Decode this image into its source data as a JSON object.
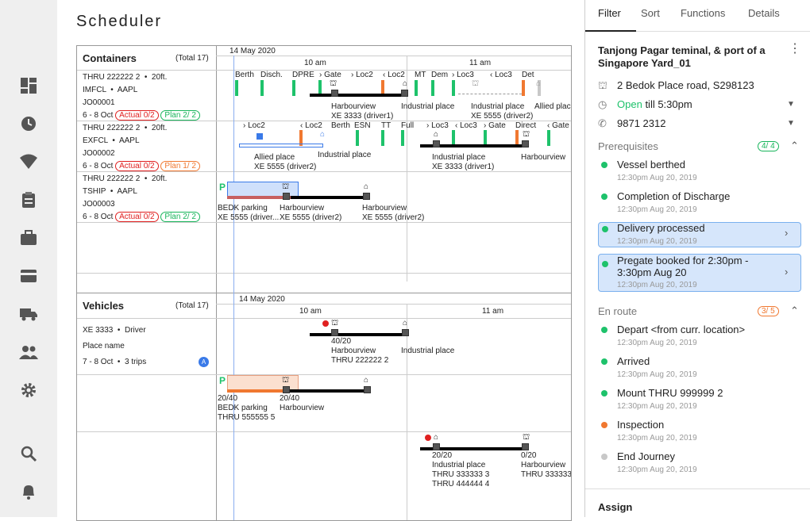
{
  "page": {
    "title": "Scheduler"
  },
  "nav": [
    "dashboard-icon",
    "history-icon",
    "wifi-icon",
    "clipboard-icon",
    "briefcase-icon",
    "card-icon",
    "truck-icon",
    "people-icon",
    "settings-icon",
    "search-icon",
    "bell-icon"
  ],
  "containers": {
    "title": "Containers",
    "total": "(Total 17)",
    "date": "14 May 2020",
    "time1": "10 am",
    "time2": "11 am",
    "rows": [
      {
        "l1": "THRU 222222 2",
        "l1b": "20ft.",
        "l2": "IMFCL",
        "l2b": "AAPL",
        "l3": "JO00001",
        "l4": "6 - 8 Oct",
        "actual": "Actual 0/2",
        "plan": "Plan 2/ 2"
      },
      {
        "l1": "THRU 222222 2",
        "l1b": "20ft.",
        "l2": "EXFCL",
        "l2b": "AAPL",
        "l3": "JO00002",
        "l4": "6 - 8 Oct",
        "actual": "Actual 0/2",
        "plan": "Plan 1/ 2"
      },
      {
        "l1": "THRU 222222 2",
        "l1b": "20ft.",
        "l2": "TSHIP",
        "l2b": "AAPL",
        "l3": "JO00003",
        "l4": "6 - 8 Oct",
        "actual": "Actual 0/2",
        "plan": "Plan 2/ 2"
      }
    ],
    "r1": {
      "m1": "Berth",
      "m2": "Disch.",
      "m3": "DPRE",
      "m4": "Gate",
      "m5": "Loc2",
      "m6": "Loc2",
      "m7": "MT",
      "m8": "Dem",
      "m9": "Loc3",
      "m10": "Loc3",
      "m11": "Det",
      "a1": "Harbourview",
      "a2": "XE 3333 (driver1)",
      "a3": "Industrial place",
      "a4": "Industrial place",
      "a5": "XE 5555 (driver2)",
      "a6": "Allied plac",
      "n": "8"
    },
    "r2": {
      "m1": "Loc2",
      "m2": "Loc2",
      "m3": "Berth",
      "m4": "ESN",
      "m5": "TT",
      "m6": "Full",
      "m7": "Loc3",
      "m8": "Loc3",
      "m9": "Gate",
      "m10": "Direct",
      "m11": "Gate",
      "a1": "Allied place",
      "a2": "XE 5555 (driver2)",
      "a3": "Industrial place",
      "a4": "Industrial place",
      "a5": "XE 3333 (driver1)",
      "a6": "Harbourview",
      "n": "8"
    },
    "r3": {
      "p": "P",
      "a1": "BEDK parking",
      "a2": "XE 5555 (driver...",
      "a3": "Harbourview",
      "a4": "XE 5555 (driver2)",
      "a5": "Harbourview",
      "a6": "XE 5555 (driver2)",
      "n": "8"
    }
  },
  "vehicles": {
    "title": "Vehicles",
    "total": "(Total 17)",
    "date": "14 May 2020",
    "time1": "10 am",
    "time2": "11 am",
    "v1": {
      "l1": "XE 3333",
      "l1b": "Driver",
      "l2": "Place name",
      "l3": "7 - 8 Oct",
      "l3b": "3 trips",
      "badge": "A",
      "a1": "40/20",
      "a2": "Harbourview",
      "a3": "THRU 222222 2",
      "a4": "Industrial place"
    },
    "v2": {
      "p": "P",
      "a1": "20/40",
      "a2": "BEDK parking",
      "a3": "THRU 555555 5",
      "a4": "20/40",
      "a5": "Harbourview"
    },
    "v3": {
      "a1": "20/20",
      "a2": "Industrial place",
      "a3": "THRU 333333 3",
      "a4": "THRU 444444 4",
      "a5": "0/20",
      "a6": "Harbourview",
      "a7": "THRU 333333"
    }
  },
  "right": {
    "tabs": [
      "Filter",
      "Sort",
      "Functions",
      "Details"
    ],
    "location": "Tanjong Pagar teminal, & port of a Singapore Yard_01",
    "address": "2 Bedok Place road, S298123",
    "open": "Open",
    "till": "till 5:30pm",
    "phone": "9871 2312",
    "prereq": "Prerequisites",
    "prereq_count": "4/ 4",
    "items1": [
      {
        "t": "Vessel berthed",
        "s": "12:30pm Aug 20, 2019"
      },
      {
        "t": "Completion of Discharge",
        "s": "12:30pm Aug 20, 2019"
      },
      {
        "t": "Delivery processed",
        "s": "12:30pm Aug 20, 2019"
      },
      {
        "t": "Pregate booked for 2:30pm - 3:30pm Aug 20",
        "s": "12:30pm Aug 20, 2019"
      }
    ],
    "enroute": "En route",
    "enroute_count": "3/ 5",
    "items2": [
      {
        "t": "Depart <from curr. location>",
        "s": "12:30pm Aug 20, 2019"
      },
      {
        "t": "Arrived",
        "s": "12:30pm Aug 20, 2019"
      },
      {
        "t": "Mount THRU 999999 2",
        "s": "12:30pm Aug 20, 2019"
      },
      {
        "t": "Inspection",
        "s": "12:30pm Aug 20, 2019"
      },
      {
        "t": "End Journey",
        "s": "12:30pm Aug 20, 2019"
      }
    ],
    "assign": "Assign",
    "colors": {
      "green": "#1ec26b",
      "orange": "#f07830",
      "gray": "#c8c8c8",
      "blue": "#3a7ae8"
    }
  }
}
